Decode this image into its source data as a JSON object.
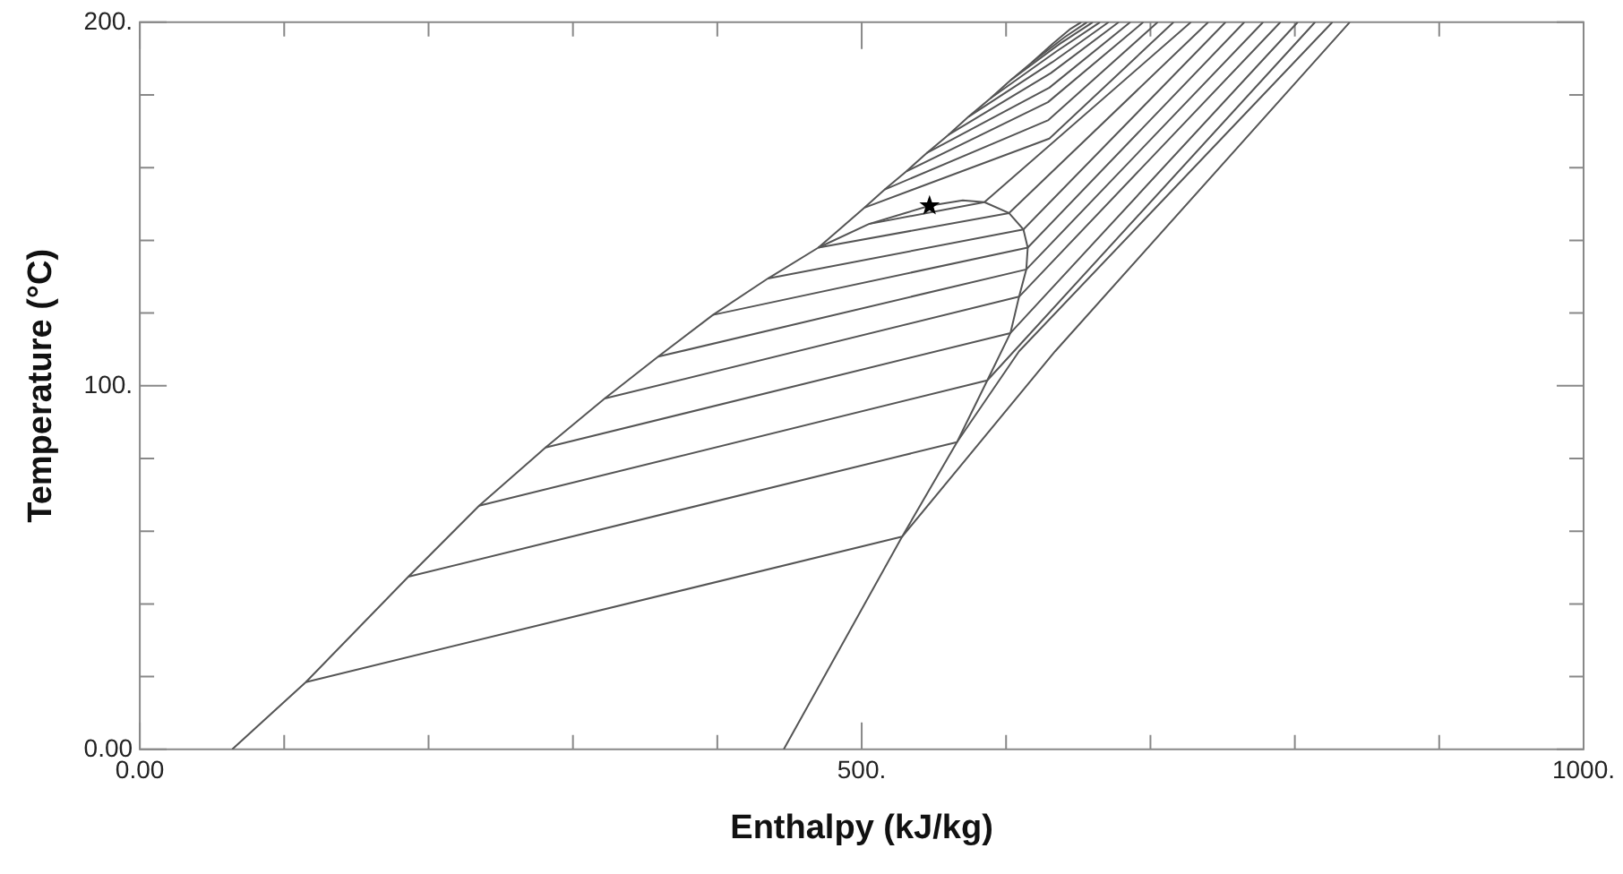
{
  "chart_data": {
    "type": "line",
    "xlabel": "Enthalpy (kJ/kg)",
    "ylabel": "Temperature (°C)",
    "xlim": [
      0,
      1000
    ],
    "ylim": [
      0,
      200
    ],
    "xticks": [
      {
        "value": 0,
        "label": "0.00"
      },
      {
        "value": 100,
        "label": null
      },
      {
        "value": 200,
        "label": null
      },
      {
        "value": 300,
        "label": null
      },
      {
        "value": 400,
        "label": null
      },
      {
        "value": 500,
        "label": "500."
      },
      {
        "value": 600,
        "label": null
      },
      {
        "value": 700,
        "label": null
      },
      {
        "value": 800,
        "label": null
      },
      {
        "value": 900,
        "label": null
      },
      {
        "value": 1000,
        "label": "1000."
      }
    ],
    "yticks": [
      {
        "value": 0,
        "label": "0.00"
      },
      {
        "value": 20,
        "label": null
      },
      {
        "value": 40,
        "label": null
      },
      {
        "value": 60,
        "label": null
      },
      {
        "value": 80,
        "label": null
      },
      {
        "value": 100,
        "label": "100."
      },
      {
        "value": 120,
        "label": null
      },
      {
        "value": 140,
        "label": null
      },
      {
        "value": 160,
        "label": null
      },
      {
        "value": 180,
        "label": null
      },
      {
        "value": 200,
        "label": "200."
      }
    ],
    "grid": false,
    "legend": false,
    "marker": "none",
    "line_style": "solid",
    "series": [
      {
        "color": "#555555",
        "x": [
          64,
          115,
          186,
          235,
          281,
          322,
          359,
          397,
          435,
          470,
          505,
          530,
          547,
          570,
          585,
          602,
          612,
          615,
          614,
          609,
          603,
          587,
          566,
          528,
          446
        ],
        "values": [
          0,
          18.5,
          47.5,
          67,
          83,
          96.5,
          108,
          119.5,
          129.5,
          138,
          144.5,
          147.5,
          149.5,
          151,
          150.5,
          147.5,
          143,
          138,
          132,
          124.5,
          114.5,
          101.5,
          84.5,
          58.5,
          0
        ]
      },
      {
        "color": "#555555",
        "x": [
          115,
          528,
          634,
          838
        ],
        "values": [
          18.5,
          58.5,
          109.5,
          200
        ]
      },
      {
        "color": "#555555",
        "x": [
          186,
          566,
          609,
          826
        ],
        "values": [
          47.5,
          84.5,
          109.5,
          200
        ]
      },
      {
        "color": "#555555",
        "x": [
          235,
          587,
          814
        ],
        "values": [
          67,
          101.5,
          200
        ]
      },
      {
        "color": "#555555",
        "x": [
          281,
          603,
          802
        ],
        "values": [
          83,
          114.5,
          200
        ]
      },
      {
        "color": "#555555",
        "x": [
          322,
          609,
          790
        ],
        "values": [
          96.5,
          124.5,
          200
        ]
      },
      {
        "color": "#555555",
        "x": [
          359,
          614,
          778
        ],
        "values": [
          108,
          132,
          200
        ]
      },
      {
        "color": "#555555",
        "x": [
          397,
          615,
          765
        ],
        "values": [
          119.5,
          138,
          200
        ]
      },
      {
        "color": "#555555",
        "x": [
          435,
          612,
          752
        ],
        "values": [
          129.5,
          143,
          200
        ]
      },
      {
        "color": "#555555",
        "x": [
          470,
          602,
          740
        ],
        "values": [
          138,
          147.5,
          200
        ]
      },
      {
        "color": "#555555",
        "x": [
          505,
          585,
          728
        ],
        "values": [
          144.5,
          150.5,
          200
        ]
      },
      {
        "color": "#555555",
        "x": [
          502,
          630,
          716
        ],
        "values": [
          149,
          168,
          200
        ]
      },
      {
        "color": "#555555",
        "x": [
          516,
          629,
          705
        ],
        "values": [
          154,
          173,
          200
        ]
      },
      {
        "color": "#555555",
        "x": [
          531,
          629,
          695
        ],
        "values": [
          159,
          178,
          200
        ]
      },
      {
        "color": "#555555",
        "x": [
          545,
          630,
          686
        ],
        "values": [
          164,
          182,
          200
        ]
      },
      {
        "color": "#555555",
        "x": [
          560,
          631,
          678
        ],
        "values": [
          169,
          186,
          200
        ]
      },
      {
        "color": "#555555",
        "x": [
          574,
          632,
          671
        ],
        "values": [
          174,
          189,
          200
        ]
      },
      {
        "color": "#555555",
        "x": [
          589,
          635,
          665
        ],
        "values": [
          179,
          192,
          200
        ]
      },
      {
        "color": "#555555",
        "x": [
          603,
          637,
          660
        ],
        "values": [
          184,
          194,
          200
        ]
      },
      {
        "color": "#555555",
        "x": [
          618,
          641,
          656
        ],
        "values": [
          189,
          196,
          200
        ]
      },
      {
        "color": "#555555",
        "x": [
          470,
          502,
          516,
          531,
          545,
          560,
          574,
          589,
          603,
          618,
          632,
          644,
          652
        ],
        "values": [
          138,
          149,
          154,
          159,
          164,
          169,
          174,
          179,
          184,
          189,
          194,
          198,
          200
        ]
      },
      {
        "type": "scatter",
        "color": "#000000",
        "marker": "star",
        "x": [
          547
        ],
        "values": [
          149.5
        ]
      }
    ]
  }
}
